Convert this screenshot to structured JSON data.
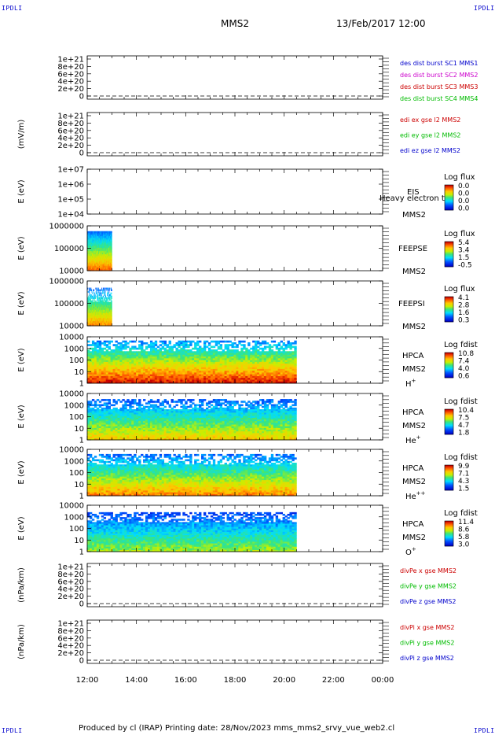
{
  "header": {
    "spacecraft": "MMS2",
    "datetime": "13/Feb/2017 12:00",
    "corner_label": "IPDLI"
  },
  "footer": {
    "text": "Produced by cl (IRAP)   Printing date: 28/Nov/2023   mms_mms2_srvy_vue_web2.cl"
  },
  "colors": {
    "blue": "#0000cc",
    "magenta": "#cc00cc",
    "red": "#cc0000",
    "green": "#00bb00"
  },
  "chart_data": {
    "type": "heatmap",
    "x_ticks": [
      "12:00",
      "14:00",
      "16:00",
      "18:00",
      "20:00",
      "22:00",
      "00:00"
    ],
    "panels": [
      {
        "kind": "line",
        "ylabel": "",
        "y_ticks": [
          "1e+21",
          "8e+20",
          "6e+20",
          "4e+20",
          "2e+20",
          "0"
        ],
        "legend": [
          {
            "text": "des dist burst SC1 MMS1",
            "color": "#0000cc"
          },
          {
            "text": "des dist burst SC2 MMS2",
            "color": "#cc00cc"
          },
          {
            "text": "des dist burst SC3 MMS3",
            "color": "#cc0000"
          },
          {
            "text": "des dist burst SC4 MMS4",
            "color": "#00bb00"
          }
        ]
      },
      {
        "kind": "line",
        "ylabel": "(mV/m)",
        "y_ticks": [
          "1e+21",
          "8e+20",
          "6e+20",
          "4e+20",
          "2e+20",
          "0"
        ],
        "legend": [
          {
            "text": "edi ex gse l2 MMS2",
            "color": "#cc0000"
          },
          {
            "text": "edi ey gse l2 MMS2",
            "color": "#00bb00"
          },
          {
            "text": "edi ez gse l2 MMS2",
            "color": "#0000cc"
          }
        ]
      },
      {
        "kind": "spec",
        "ylabel": "E (eV)",
        "y_ticks": [
          "1e+07",
          "1e+06",
          "1e+05",
          "1e+04"
        ],
        "labels": [
          "EIS",
          "Heavy electron to",
          "MMS2"
        ],
        "cb_title": "Log flux",
        "cb_values": [
          "0.0",
          "0.0",
          "0.0",
          "0.0"
        ],
        "data_end": 0,
        "top": 0,
        "max": 0
      },
      {
        "kind": "spec",
        "ylabel": "E (eV)",
        "y_ticks": [
          "1000000",
          "100000",
          "10000"
        ],
        "labels": [
          "FEEPSE",
          "MMS2"
        ],
        "cb_title": "Log flux",
        "cb_values": [
          "5.4",
          "3.4",
          "1.5",
          "-0.5"
        ],
        "data_end": 1.0,
        "top": 0.88,
        "max": 0.9
      },
      {
        "kind": "spec",
        "ylabel": "E (eV)",
        "y_ticks": [
          "1000000",
          "100000",
          "10000"
        ],
        "labels": [
          "FEEPSI",
          "MMS2"
        ],
        "cb_title": "Log flux",
        "cb_values": [
          "4.1",
          "2.8",
          "1.6",
          "0.3"
        ],
        "data_end": 1.0,
        "top": 0.85,
        "max": 0.85
      },
      {
        "kind": "spec",
        "ylabel": "E (eV)",
        "y_ticks": [
          "10000",
          "1000",
          "100",
          "10",
          "1"
        ],
        "labels": [
          "HPCA",
          "MMS2",
          "H+"
        ],
        "cb_title": "Log fdist",
        "cb_values": [
          "10.8",
          "7.4",
          "4.0",
          "0.6"
        ],
        "data_end": 8.5,
        "top": 0.92,
        "max": 1.0
      },
      {
        "kind": "spec",
        "ylabel": "E (eV)",
        "y_ticks": [
          "10000",
          "1000",
          "100",
          "10",
          "1"
        ],
        "labels": [
          "HPCA",
          "MMS2",
          "He+"
        ],
        "cb_title": "Log fdist",
        "cb_values": [
          "10.4",
          "7.5",
          "4.7",
          "1.8"
        ],
        "data_end": 8.5,
        "top": 0.88,
        "max": 0.75
      },
      {
        "kind": "spec",
        "ylabel": "E (eV)",
        "y_ticks": [
          "10000",
          "1000",
          "100",
          "10",
          "1"
        ],
        "labels": [
          "HPCA",
          "MMS2",
          "He++"
        ],
        "cb_title": "Log fdist",
        "cb_values": [
          "9.9",
          "7.1",
          "4.3",
          "1.5"
        ],
        "data_end": 8.5,
        "top": 0.9,
        "max": 0.85
      },
      {
        "kind": "spec",
        "ylabel": "E (eV)",
        "y_ticks": [
          "10000",
          "1000",
          "100",
          "10",
          "1"
        ],
        "labels": [
          "HPCA",
          "MMS2",
          "O+"
        ],
        "cb_title": "Log fdist",
        "cb_values": [
          "11.4",
          "8.6",
          "5.8",
          "3.0"
        ],
        "data_end": 8.5,
        "top": 0.85,
        "max": 0.6
      },
      {
        "kind": "line",
        "ylabel": "(nPa/km)",
        "y_ticks": [
          "1e+21",
          "8e+20",
          "6e+20",
          "4e+20",
          "2e+20",
          "0"
        ],
        "legend": [
          {
            "text": "divPe x gse MMS2",
            "color": "#cc0000"
          },
          {
            "text": "divPe y gse MMS2",
            "color": "#00bb00"
          },
          {
            "text": "divPe z gse MMS2",
            "color": "#0000cc"
          }
        ]
      },
      {
        "kind": "line",
        "ylabel": "(nPa/km)",
        "y_ticks": [
          "1e+21",
          "8e+20",
          "6e+20",
          "4e+20",
          "2e+20",
          "0"
        ],
        "legend": [
          {
            "text": "divPi x gse MMS2",
            "color": "#cc0000"
          },
          {
            "text": "divPi y gse MMS2",
            "color": "#00bb00"
          },
          {
            "text": "divPi z gse MMS2",
            "color": "#0000cc"
          }
        ]
      }
    ]
  }
}
